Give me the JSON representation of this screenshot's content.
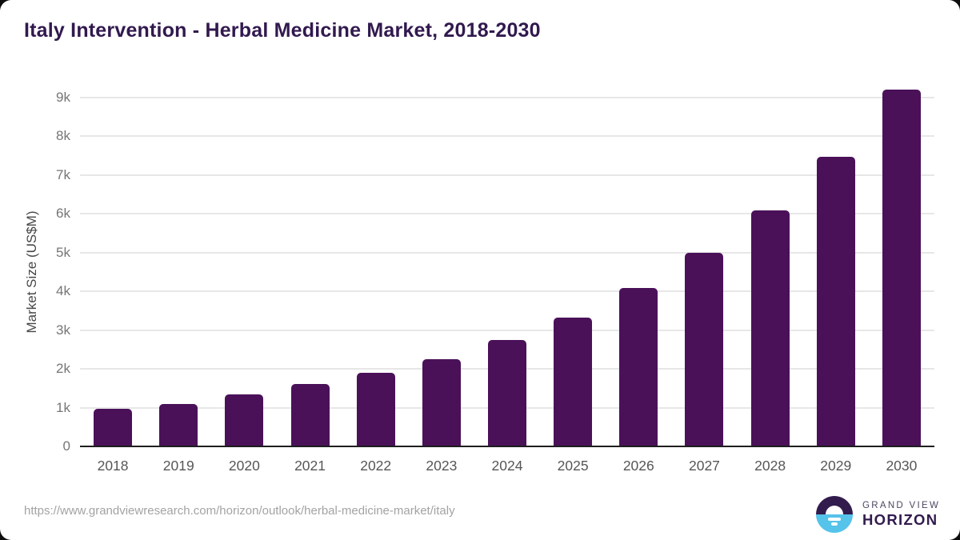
{
  "page": {
    "outer_background": "#0d0d0d",
    "card_background": "#ffffff"
  },
  "header": {
    "title": "Italy Intervention - Herbal Medicine Market, 2018-2030",
    "title_color": "#31194e"
  },
  "chart_data": {
    "type": "bar",
    "title": "Italy Intervention - Herbal Medicine Market, 2018-2030",
    "xlabel": "",
    "ylabel": "Market Size (US$M)",
    "categories": [
      "2018",
      "2019",
      "2020",
      "2021",
      "2022",
      "2023",
      "2024",
      "2025",
      "2026",
      "2027",
      "2028",
      "2029",
      "2030"
    ],
    "values": [
      970,
      1100,
      1350,
      1600,
      1900,
      2260,
      2740,
      3320,
      4080,
      5000,
      6090,
      7470,
      9200
    ],
    "values_unit": "US$M",
    "ylim": [
      0,
      9500
    ],
    "yticks": [
      0,
      1000,
      2000,
      3000,
      4000,
      5000,
      6000,
      7000,
      8000,
      9000
    ],
    "ytick_labels": [
      "0",
      "1k",
      "2k",
      "3k",
      "4k",
      "5k",
      "6k",
      "7k",
      "8k",
      "9k"
    ],
    "grid": true,
    "legend": "none",
    "bar_color": "#4a1159",
    "gridline_color": "#e7e7e7",
    "axis_line_color": "#1f1f1f",
    "tick_label_color": "#767676",
    "x_label_color": "#565656"
  },
  "footer": {
    "source_url": "https://www.grandviewresearch.com/horizon/outlook/herbal-medicine-market/italy",
    "logo": {
      "icon": "horizon-sunrise-circle-icon",
      "icon_top_color": "#321b4d",
      "icon_bottom_color": "#56c3ea",
      "line1": "GRAND VIEW",
      "line2": "HORIZON",
      "text_color": "#321b4d"
    }
  }
}
